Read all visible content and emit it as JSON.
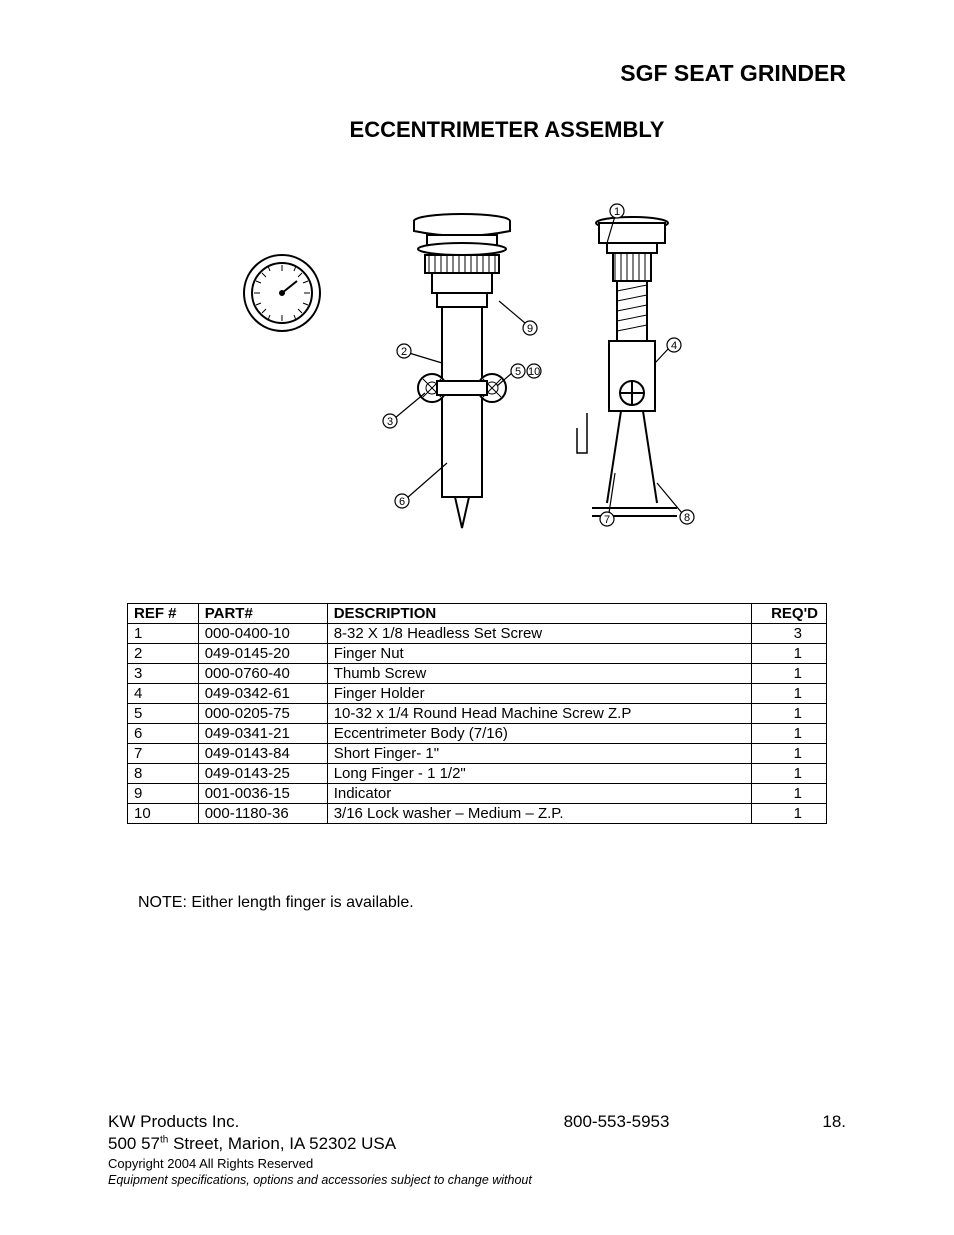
{
  "header": {
    "product": "SGF SEAT GRINDER"
  },
  "title": "ECCENTRIMETER ASSEMBLY",
  "diagram": {
    "type": "technical-illustration",
    "callouts": [
      "1",
      "2",
      "3",
      "4",
      "5",
      "6",
      "7",
      "8",
      "9",
      "10"
    ],
    "stroke": "#000000",
    "background": "#ffffff"
  },
  "table": {
    "headers": {
      "ref": "REF #",
      "part": "PART#",
      "desc": "DESCRIPTION",
      "reqd": "REQ'D"
    },
    "rows": [
      {
        "ref": "1",
        "part": "000-0400-10",
        "desc": "8-32 X 1/8 Headless Set Screw",
        "reqd": "3"
      },
      {
        "ref": "2",
        "part": "049-0145-20",
        "desc": "Finger Nut",
        "reqd": "1"
      },
      {
        "ref": "3",
        "part": "000-0760-40",
        "desc": "Thumb Screw",
        "reqd": "1"
      },
      {
        "ref": "4",
        "part": "049-0342-61",
        "desc": "Finger Holder",
        "reqd": "1"
      },
      {
        "ref": "5",
        "part": "000-0205-75",
        "desc": "10-32 x 1/4 Round Head Machine Screw Z.P",
        "reqd": "1"
      },
      {
        "ref": "6",
        "part": "049-0341-21",
        "desc": "Eccentrimeter Body (7/16)",
        "reqd": "1"
      },
      {
        "ref": "7",
        "part": "049-0143-84",
        "desc": "Short Finger- 1\"",
        "reqd": "1"
      },
      {
        "ref": "8",
        "part": "049-0143-25",
        "desc": "Long Finger - 1 1/2\"",
        "reqd": "1"
      },
      {
        "ref": "9",
        "part": "001-0036-15",
        "desc": "Indicator",
        "reqd": "1"
      },
      {
        "ref": "10",
        "part": "000-1180-36",
        "desc": "3/16 Lock washer – Medium – Z.P.",
        "reqd": "1"
      }
    ]
  },
  "note": "NOTE: Either length finger is available.",
  "footer": {
    "company": "KW Products Inc.",
    "phone": "800-553-5953",
    "page": "18.",
    "address_prefix": "500 57",
    "address_super": "th",
    "address_suffix": " Street, Marion, IA  52302  USA",
    "copyright": "Copyright 2004   All Rights Reserved",
    "disclaimer": "Equipment specifications, options and accessories subject to change without"
  }
}
